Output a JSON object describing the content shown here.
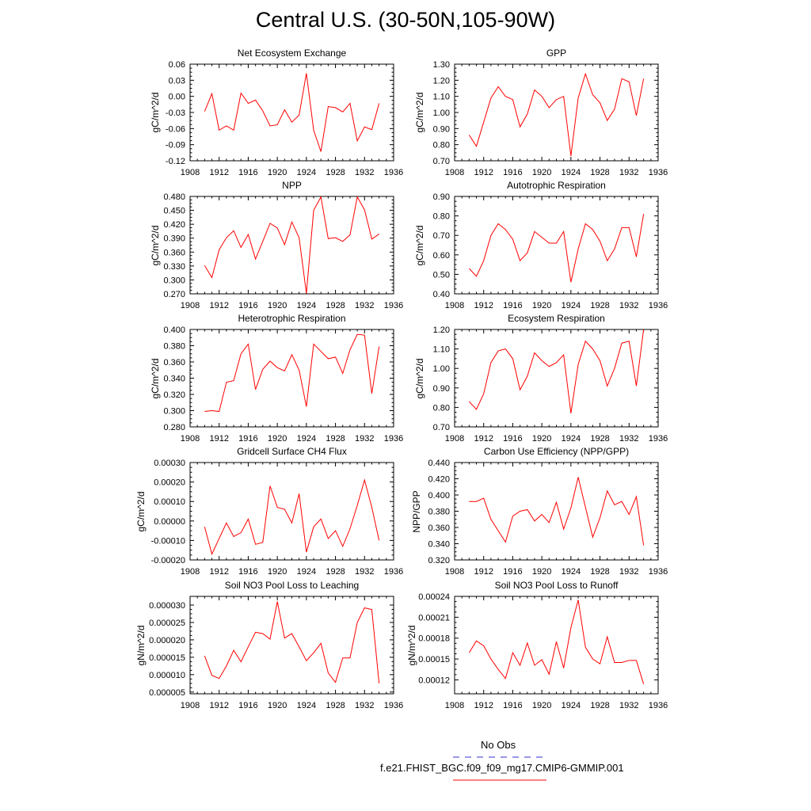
{
  "title": "Central U.S. (30-50N,105-90W)",
  "legend": [
    {
      "label": "No Obs",
      "color": "#5a5adc",
      "dash": true
    },
    {
      "label": "f.e21.FHIST_BGC.f09_f09_mg17.CMIP6-GMMIP.001",
      "color": "#ff0000",
      "dash": false
    }
  ],
  "line_color": "#ff0000",
  "chart_data": [
    {
      "type": "line",
      "title": "Net Ecosystem Exchange",
      "ylabel": "gC/m^2/d",
      "xlim": [
        1908,
        1936
      ],
      "xticks": [
        1908,
        1912,
        1916,
        1920,
        1924,
        1928,
        1932,
        1936
      ],
      "ylim": [
        -0.12,
        0.06
      ],
      "yticks": [
        "-0.12",
        "-0.09",
        "-0.06",
        "-0.03",
        "0.00",
        "0.03",
        "0.06"
      ],
      "x": [
        1910,
        1911,
        1912,
        1913,
        1914,
        1915,
        1916,
        1917,
        1918,
        1919,
        1920,
        1921,
        1922,
        1923,
        1924,
        1925,
        1926,
        1927,
        1928,
        1929,
        1930,
        1931,
        1932,
        1933,
        1934
      ],
      "y": [
        -0.028,
        0.005,
        -0.063,
        -0.055,
        -0.063,
        0.006,
        -0.013,
        -0.007,
        -0.027,
        -0.055,
        -0.053,
        -0.025,
        -0.048,
        -0.035,
        0.043,
        -0.063,
        -0.103,
        -0.019,
        -0.021,
        -0.029,
        -0.013,
        -0.083,
        -0.057,
        -0.062,
        -0.013
      ]
    },
    {
      "type": "line",
      "title": "GPP",
      "ylabel": "gC/m^2/d",
      "xlim": [
        1908,
        1936
      ],
      "xticks": [
        1908,
        1912,
        1916,
        1920,
        1924,
        1928,
        1932,
        1936
      ],
      "ylim": [
        0.7,
        1.3
      ],
      "yticks": [
        "0.70",
        "0.80",
        "0.90",
        "1.00",
        "1.10",
        "1.20",
        "1.30"
      ],
      "x": [
        1910,
        1911,
        1912,
        1913,
        1914,
        1915,
        1916,
        1917,
        1918,
        1919,
        1920,
        1921,
        1922,
        1923,
        1924,
        1925,
        1926,
        1927,
        1928,
        1929,
        1930,
        1931,
        1932,
        1933,
        1934
      ],
      "y": [
        0.86,
        0.79,
        0.94,
        1.09,
        1.16,
        1.1,
        1.08,
        0.91,
        0.99,
        1.14,
        1.1,
        1.03,
        1.08,
        1.1,
        0.73,
        1.09,
        1.24,
        1.11,
        1.06,
        0.95,
        1.02,
        1.21,
        1.19,
        0.98,
        1.21
      ]
    },
    {
      "type": "line",
      "title": "NPP",
      "ylabel": "gC/m^2/d",
      "xlim": [
        1908,
        1936
      ],
      "xticks": [
        1908,
        1912,
        1916,
        1920,
        1924,
        1928,
        1932,
        1936
      ],
      "ylim": [
        0.27,
        0.48
      ],
      "yticks": [
        "0.270",
        "0.300",
        "0.330",
        "0.360",
        "0.390",
        "0.420",
        "0.450",
        "0.480"
      ],
      "x": [
        1910,
        1911,
        1912,
        1913,
        1914,
        1915,
        1916,
        1917,
        1918,
        1919,
        1920,
        1921,
        1922,
        1923,
        1924,
        1925,
        1926,
        1927,
        1928,
        1929,
        1930,
        1931,
        1932,
        1933,
        1934
      ],
      "y": [
        0.331,
        0.305,
        0.365,
        0.391,
        0.406,
        0.37,
        0.398,
        0.345,
        0.383,
        0.422,
        0.412,
        0.376,
        0.425,
        0.391,
        0.271,
        0.45,
        0.479,
        0.389,
        0.391,
        0.383,
        0.397,
        0.479,
        0.451,
        0.388,
        0.399
      ]
    },
    {
      "type": "line",
      "title": "Autotrophic Respiration",
      "ylabel": "gC/m^2/d",
      "xlim": [
        1908,
        1936
      ],
      "xticks": [
        1908,
        1912,
        1916,
        1920,
        1924,
        1928,
        1932,
        1936
      ],
      "ylim": [
        0.4,
        0.9
      ],
      "yticks": [
        "0.40",
        "0.50",
        "0.60",
        "0.70",
        "0.80",
        "0.90"
      ],
      "x": [
        1910,
        1911,
        1912,
        1913,
        1914,
        1915,
        1916,
        1917,
        1918,
        1919,
        1920,
        1921,
        1922,
        1923,
        1924,
        1925,
        1926,
        1927,
        1928,
        1929,
        1930,
        1931,
        1932,
        1933,
        1934
      ],
      "y": [
        0.53,
        0.49,
        0.57,
        0.7,
        0.76,
        0.73,
        0.68,
        0.57,
        0.61,
        0.72,
        0.69,
        0.66,
        0.66,
        0.72,
        0.46,
        0.63,
        0.76,
        0.73,
        0.67,
        0.57,
        0.63,
        0.74,
        0.74,
        0.59,
        0.81
      ]
    },
    {
      "type": "line",
      "title": "Heterotrophic Respiration",
      "ylabel": "gC/m^2/d",
      "xlim": [
        1908,
        1936
      ],
      "xticks": [
        1908,
        1912,
        1916,
        1920,
        1924,
        1928,
        1932,
        1936
      ],
      "ylim": [
        0.28,
        0.4
      ],
      "yticks": [
        "0.280",
        "0.300",
        "0.320",
        "0.340",
        "0.360",
        "0.380",
        "0.400"
      ],
      "x": [
        1910,
        1911,
        1912,
        1913,
        1914,
        1915,
        1916,
        1917,
        1918,
        1919,
        1920,
        1921,
        1922,
        1923,
        1924,
        1925,
        1926,
        1927,
        1928,
        1929,
        1930,
        1931,
        1932,
        1933,
        1934
      ],
      "y": [
        0.299,
        0.3,
        0.299,
        0.335,
        0.337,
        0.37,
        0.382,
        0.326,
        0.351,
        0.361,
        0.353,
        0.349,
        0.369,
        0.35,
        0.305,
        0.382,
        0.373,
        0.364,
        0.366,
        0.346,
        0.375,
        0.394,
        0.393,
        0.321,
        0.379
      ]
    },
    {
      "type": "line",
      "title": "Ecosystem Respiration",
      "ylabel": "gC/m^2/d",
      "xlim": [
        1908,
        1936
      ],
      "xticks": [
        1908,
        1912,
        1916,
        1920,
        1924,
        1928,
        1932,
        1936
      ],
      "ylim": [
        0.7,
        1.2
      ],
      "yticks": [
        "0.70",
        "0.80",
        "0.90",
        "1.00",
        "1.10",
        "1.20"
      ],
      "x": [
        1910,
        1911,
        1912,
        1913,
        1914,
        1915,
        1916,
        1917,
        1918,
        1919,
        1920,
        1921,
        1922,
        1923,
        1924,
        1925,
        1926,
        1927,
        1928,
        1929,
        1930,
        1931,
        1932,
        1933,
        1934
      ],
      "y": [
        0.83,
        0.79,
        0.87,
        1.03,
        1.09,
        1.1,
        1.05,
        0.89,
        0.96,
        1.08,
        1.04,
        1.01,
        1.03,
        1.07,
        0.77,
        1.02,
        1.14,
        1.1,
        1.04,
        0.91,
        1.0,
        1.13,
        1.14,
        0.91,
        1.2
      ]
    },
    {
      "type": "line",
      "title": "Gridcell Surface CH4 Flux",
      "ylabel": "gC/m^2/d",
      "xlim": [
        1908,
        1936
      ],
      "xticks": [
        1908,
        1912,
        1916,
        1920,
        1924,
        1928,
        1932,
        1936
      ],
      "ylim": [
        -0.0002,
        0.0003
      ],
      "yticks": [
        "-0.00020",
        "-0.00010",
        "0.00000",
        "0.00010",
        "0.00020",
        "0.00030"
      ],
      "x": [
        1910,
        1911,
        1912,
        1913,
        1914,
        1915,
        1916,
        1917,
        1918,
        1919,
        1920,
        1921,
        1922,
        1923,
        1924,
        1925,
        1926,
        1927,
        1928,
        1929,
        1930,
        1931,
        1932,
        1933,
        1934
      ],
      "y": [
        -3e-05,
        -0.00017,
        -9e-05,
        -1e-05,
        -8e-05,
        -6e-05,
        1e-05,
        -0.00012,
        -0.00011,
        0.00018,
        7e-05,
        6e-05,
        -1e-05,
        0.00014,
        -0.00016,
        -3e-05,
        1e-05,
        -9e-05,
        -5e-05,
        -0.00013,
        -4e-05,
        8e-05,
        0.00021,
        7e-05,
        -0.0001
      ]
    },
    {
      "type": "line",
      "title": "Carbon Use Efficiency (NPP/GPP)",
      "ylabel": "NPP/GPP",
      "xlim": [
        1908,
        1936
      ],
      "xticks": [
        1908,
        1912,
        1916,
        1920,
        1924,
        1928,
        1932,
        1936
      ],
      "ylim": [
        0.32,
        0.44
      ],
      "yticks": [
        "0.320",
        "0.340",
        "0.360",
        "0.380",
        "0.400",
        "0.420",
        "0.440"
      ],
      "x": [
        1910,
        1911,
        1912,
        1913,
        1914,
        1915,
        1916,
        1917,
        1918,
        1919,
        1920,
        1921,
        1922,
        1923,
        1924,
        1925,
        1926,
        1927,
        1928,
        1929,
        1930,
        1931,
        1932,
        1933,
        1934
      ],
      "y": [
        0.392,
        0.392,
        0.396,
        0.37,
        0.356,
        0.342,
        0.374,
        0.38,
        0.382,
        0.368,
        0.376,
        0.366,
        0.391,
        0.358,
        0.384,
        0.422,
        0.385,
        0.348,
        0.372,
        0.405,
        0.388,
        0.392,
        0.376,
        0.398,
        0.338
      ]
    },
    {
      "type": "line",
      "title": "Soil NO3 Pool Loss to Leaching",
      "ylabel": "gN/m^2/d",
      "xlim": [
        1908,
        1936
      ],
      "xticks": [
        1908,
        1912,
        1916,
        1920,
        1924,
        1928,
        1932,
        1936
      ],
      "ylim": [
        4.5e-06,
        3.25e-05
      ],
      "yticks": [
        "0.000005",
        "0.000010",
        "0.000015",
        "0.000020",
        "0.000025",
        "0.000030"
      ],
      "x": [
        1910,
        1911,
        1912,
        1913,
        1914,
        1915,
        1916,
        1917,
        1918,
        1919,
        1920,
        1921,
        1922,
        1923,
        1924,
        1925,
        1926,
        1927,
        1928,
        1929,
        1930,
        1931,
        1932,
        1933,
        1934
      ],
      "y": [
        1.54e-05,
        9.8e-06,
        8.9e-06,
        1.25e-05,
        1.7e-05,
        1.37e-05,
        1.8e-05,
        2.22e-05,
        2.18e-05,
        2.02e-05,
        3.1e-05,
        2.05e-05,
        2.18e-05,
        1.8e-05,
        1.4e-05,
        1.63e-05,
        1.9e-05,
        1.05e-05,
        7.8e-06,
        1.48e-05,
        1.48e-05,
        2.5e-05,
        2.92e-05,
        2.87e-05,
        7.5e-06
      ]
    },
    {
      "type": "line",
      "title": "Soil NO3 Pool Loss to Runoff",
      "ylabel": "gN/m^2/d",
      "xlim": [
        1908,
        1936
      ],
      "xticks": [
        1908,
        1912,
        1916,
        1920,
        1924,
        1928,
        1932,
        1936
      ],
      "ylim": [
        0.0001,
        0.00024
      ],
      "yticks": [
        "0.00012",
        "0.00015",
        "0.00018",
        "0.00021",
        "0.00024"
      ],
      "x": [
        1910,
        1911,
        1912,
        1913,
        1914,
        1915,
        1916,
        1917,
        1918,
        1919,
        1920,
        1921,
        1922,
        1923,
        1924,
        1925,
        1926,
        1927,
        1928,
        1929,
        1930,
        1931,
        1932,
        1933,
        1934
      ],
      "y": [
        0.000159,
        0.000176,
        0.000169,
        0.00015,
        0.000135,
        0.000122,
        0.000159,
        0.000141,
        0.000173,
        0.000141,
        0.000149,
        0.000128,
        0.000175,
        0.000137,
        0.000195,
        0.000235,
        0.000167,
        0.00015,
        0.000143,
        0.000182,
        0.000145,
        0.000145,
        0.000148,
        0.000148,
        0.000114
      ]
    }
  ]
}
